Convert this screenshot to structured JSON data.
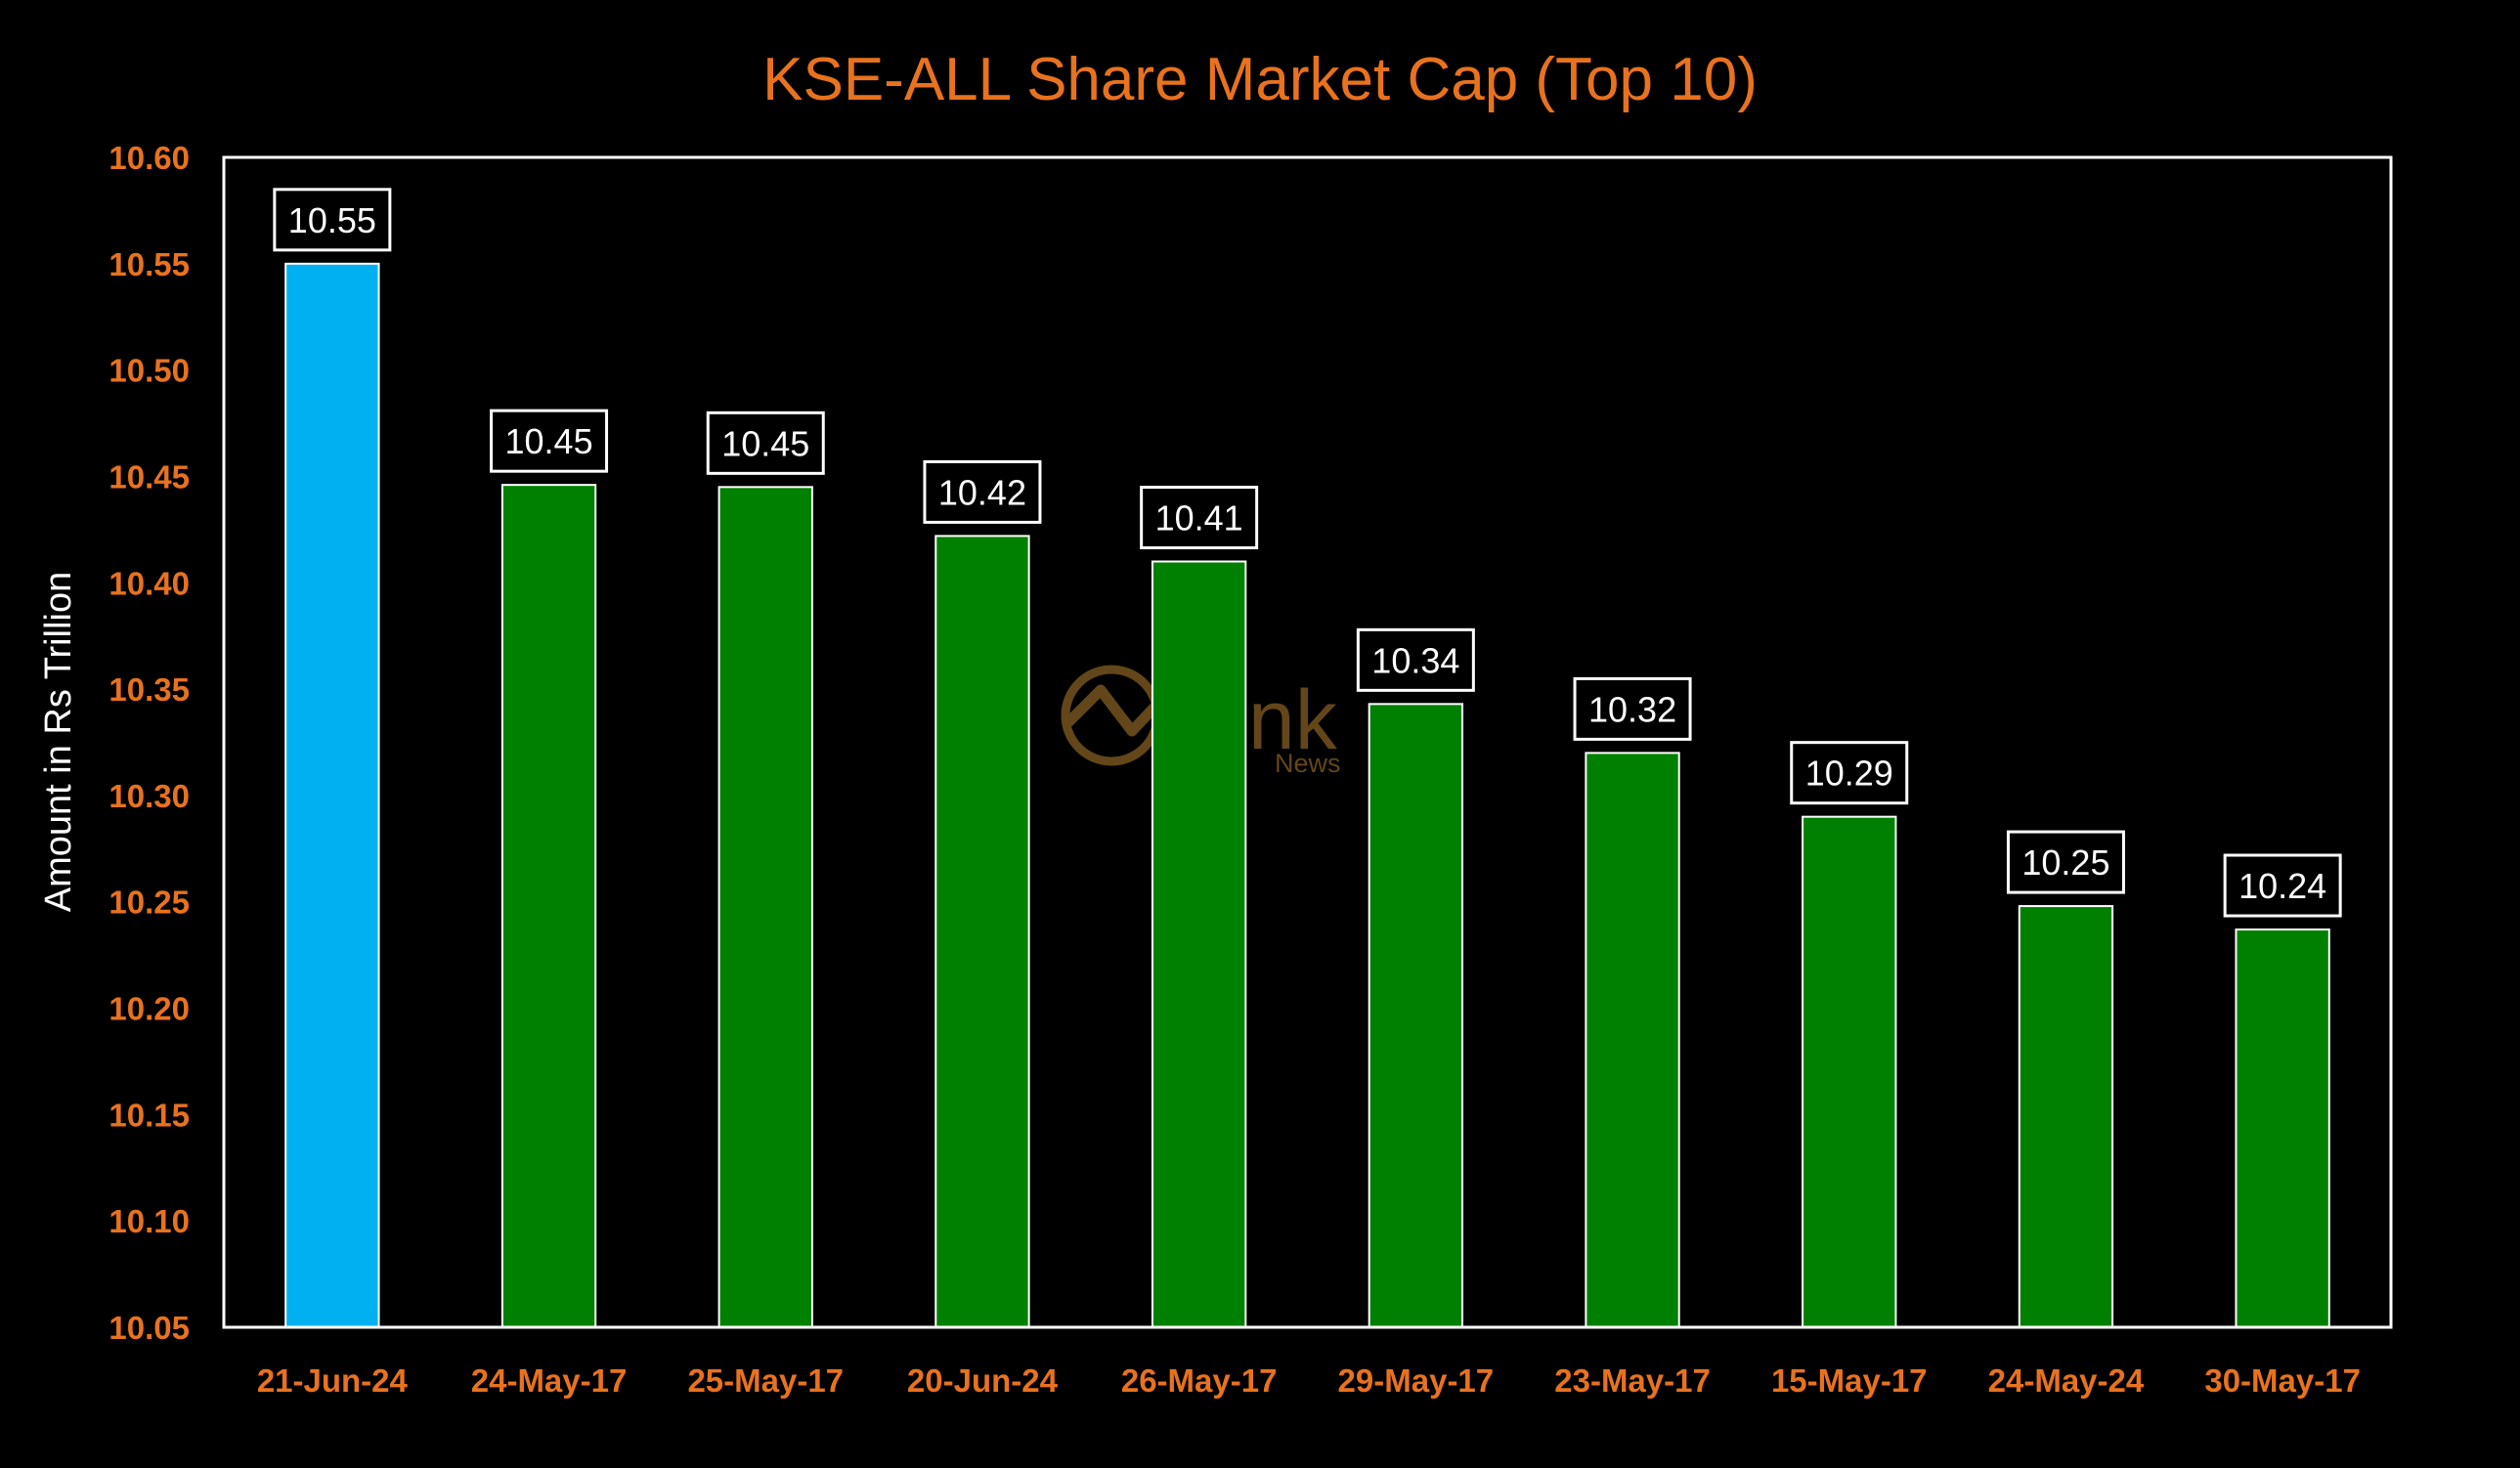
{
  "chart_data": {
    "type": "bar",
    "title": "KSE-ALL Share Market Cap (Top 10)",
    "xlabel": "",
    "ylabel": "Amount in Rs Trillion",
    "ylim": [
      10.05,
      10.6
    ],
    "yticks": [
      "10.05",
      "10.10",
      "10.15",
      "10.20",
      "10.25",
      "10.30",
      "10.35",
      "10.40",
      "10.45",
      "10.50",
      "10.55",
      "10.60"
    ],
    "categories": [
      "21-Jun-24",
      "24-May-17",
      "25-May-17",
      "20-Jun-24",
      "26-May-17",
      "29-May-17",
      "23-May-17",
      "15-May-17",
      "24-May-24",
      "30-May-17"
    ],
    "values": [
      10.55,
      10.446,
      10.445,
      10.422,
      10.41,
      10.343,
      10.32,
      10.29,
      10.248,
      10.237
    ],
    "data_labels": [
      "10.55",
      "10.45",
      "10.45",
      "10.42",
      "10.41",
      "10.34",
      "10.32",
      "10.29",
      "10.25",
      "10.24"
    ],
    "highlight_index": 0,
    "grid": false,
    "legend": "none",
    "colors": {
      "background": "#000000",
      "plot_border": "#FFFFFF",
      "highlight_bar": "#00B0F0",
      "bar": "#008000",
      "bar_outline": "#FFFFFF",
      "title": "#E8721E",
      "tick_labels": "#E8721E",
      "axis_title": "#FFFFFF",
      "data_label": "#FFFFFF"
    }
  },
  "watermark": {
    "brand": "Link",
    "sub": "News",
    "icon": "chart-line-circle-icon"
  }
}
